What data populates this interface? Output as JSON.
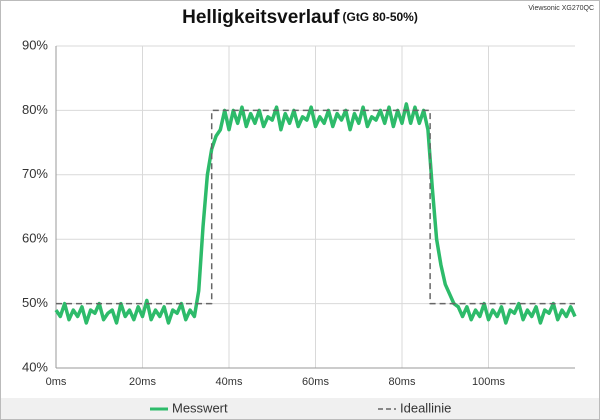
{
  "chart_data": {
    "type": "line",
    "title": "Helligkeitsverlauf",
    "subtitle": "(GtG 80-50%)",
    "annotation": "Viewsonic XG270QC",
    "xlim": [
      0,
      120
    ],
    "ylim": [
      40,
      90
    ],
    "xticks": [
      {
        "value": 0,
        "label": "0ms"
      },
      {
        "value": 20,
        "label": "20ms"
      },
      {
        "value": 40,
        "label": "40ms"
      },
      {
        "value": 60,
        "label": "60ms"
      },
      {
        "value": 80,
        "label": "80ms"
      },
      {
        "value": 100,
        "label": "100ms"
      }
    ],
    "yticks": [
      {
        "value": 40,
        "label": "40%"
      },
      {
        "value": 50,
        "label": "50%"
      },
      {
        "value": 60,
        "label": "60%"
      },
      {
        "value": 70,
        "label": "70%"
      },
      {
        "value": 80,
        "label": "80%"
      },
      {
        "value": 90,
        "label": "90%"
      }
    ],
    "grid": true,
    "legend": "bottom",
    "series": [
      {
        "name": "Messwert",
        "color": "#2dbb6a",
        "dash": false,
        "x": [
          0,
          1,
          2,
          3,
          4,
          5,
          6,
          7,
          8,
          9,
          10,
          11,
          12,
          13,
          14,
          15,
          16,
          17,
          18,
          19,
          20,
          21,
          22,
          23,
          24,
          25,
          26,
          27,
          28,
          29,
          30,
          31,
          32,
          33,
          34,
          35,
          36,
          37,
          38,
          39,
          40,
          41,
          42,
          43,
          44,
          45,
          46,
          47,
          48,
          49,
          50,
          51,
          52,
          53,
          54,
          55,
          56,
          57,
          58,
          59,
          60,
          61,
          62,
          63,
          64,
          65,
          66,
          67,
          68,
          69,
          70,
          71,
          72,
          73,
          74,
          75,
          76,
          77,
          78,
          79,
          80,
          81,
          82,
          83,
          84,
          85,
          86,
          87,
          88,
          89,
          90,
          91,
          92,
          93,
          94,
          95,
          96,
          97,
          98,
          99,
          100,
          101,
          102,
          103,
          104,
          105,
          106,
          107,
          108,
          109,
          110,
          111,
          112,
          113,
          114,
          115,
          116,
          117,
          118,
          119,
          120
        ],
        "values": [
          49,
          48,
          50,
          47.5,
          49,
          48,
          49.5,
          47,
          49,
          48.5,
          50,
          47.5,
          48.5,
          49,
          47,
          50,
          48,
          49,
          47.5,
          49.5,
          48,
          50.5,
          47.5,
          49,
          48,
          49.5,
          47,
          49,
          48.5,
          50,
          47.5,
          49,
          48,
          52,
          62,
          70,
          74,
          76,
          77,
          80,
          77,
          80,
          78,
          80.5,
          77.5,
          79.5,
          78,
          80,
          77.5,
          79,
          78.5,
          80.5,
          77,
          79.5,
          78,
          80,
          77.5,
          79,
          78.5,
          80.5,
          77.5,
          79,
          78,
          80,
          77.5,
          79.5,
          78.5,
          80,
          77,
          79.5,
          78,
          80.5,
          77.5,
          79,
          78.5,
          80,
          78,
          80.5,
          77.5,
          80,
          78,
          81,
          78,
          80.5,
          78,
          80,
          77,
          68,
          60,
          56,
          53,
          51.5,
          50,
          49.5,
          48,
          49.5,
          47.5,
          49,
          48,
          50,
          47.5,
          49,
          48,
          49.5,
          47,
          49,
          48.5,
          50,
          47.5,
          49,
          48,
          49.5,
          47,
          49,
          48.5,
          50,
          47.5,
          49,
          48,
          49.5,
          48
        ]
      },
      {
        "name": "Ideallinie",
        "color": "#666666",
        "dash": true,
        "x": [
          0,
          36,
          36,
          86.5,
          86.5,
          120
        ],
        "values": [
          50,
          50,
          80,
          80,
          50,
          50
        ]
      }
    ]
  }
}
